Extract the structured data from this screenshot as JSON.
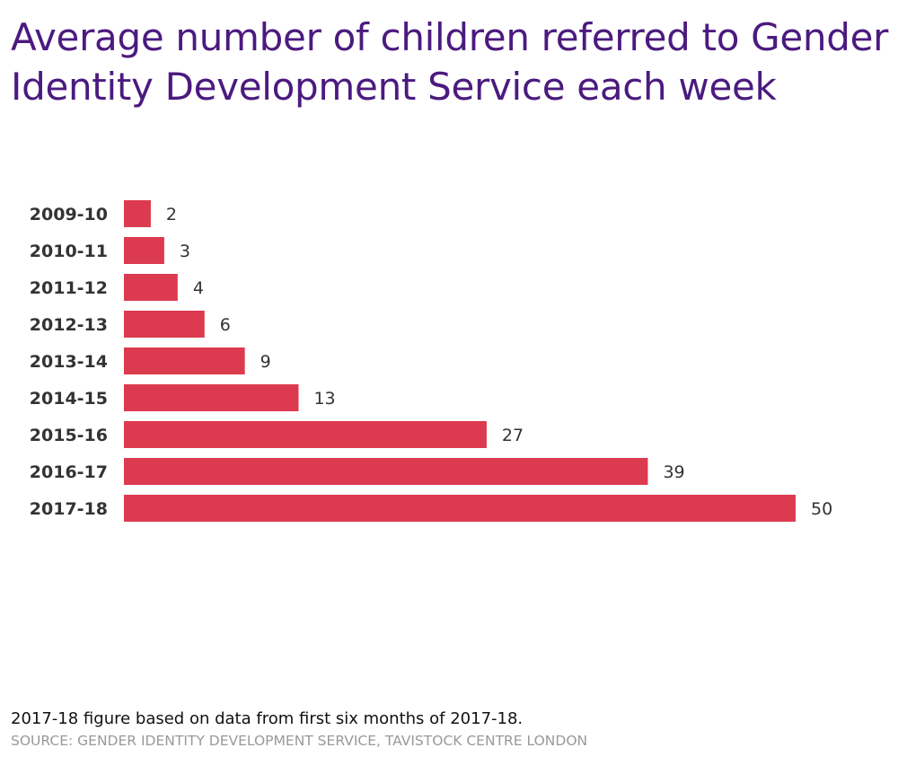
{
  "chart_data": {
    "type": "bar",
    "orientation": "horizontal",
    "title": "Average number of children referred to Gender Identity Development Service each week",
    "categories": [
      "2009-10",
      "2010-11",
      "2011-12",
      "2012-13",
      "2013-14",
      "2014-15",
      "2015-16",
      "2016-17",
      "2017-18"
    ],
    "values": [
      2,
      3,
      4,
      6,
      9,
      13,
      27,
      39,
      50
    ],
    "bar_color": "#dc3a4e",
    "title_color": "#4b1a7f",
    "xlim": [
      0,
      50
    ],
    "grid": false,
    "data_labels": true
  },
  "footer": {
    "note": "2017-18 figure based on data from first six months of 2017-18.",
    "source": "SOURCE: GENDER IDENTITY DEVELOPMENT SERVICE, TAVISTOCK CENTRE LONDON"
  }
}
